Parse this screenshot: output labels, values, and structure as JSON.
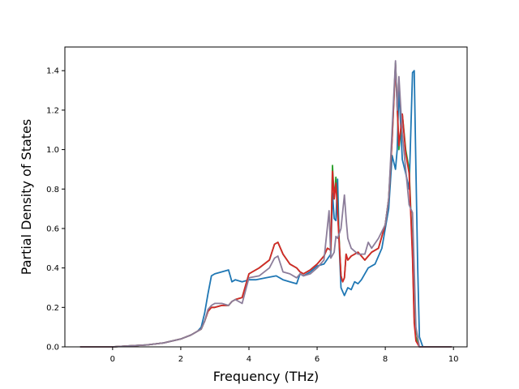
{
  "chart_data": {
    "type": "line",
    "title": "",
    "xlabel": "Frequency (THz)",
    "ylabel": "Partial Density of States",
    "xlim": [
      -1.4,
      10.4
    ],
    "ylim": [
      0.0,
      1.52
    ],
    "xticks": [
      0,
      2,
      4,
      6,
      8,
      10
    ],
    "xtick_labels": [
      "0",
      "2",
      "4",
      "6",
      "8",
      "10"
    ],
    "yticks": [
      0.0,
      0.2,
      0.4,
      0.6,
      0.8,
      1.0,
      1.2,
      1.4
    ],
    "ytick_labels": [
      "0.0",
      "0.2",
      "0.4",
      "0.6",
      "0.8",
      "1.0",
      "1.2",
      "1.4"
    ],
    "grid": false,
    "legend": "none",
    "series": [
      {
        "color": "#1f77b4",
        "x": [
          -0.95,
          0.0,
          0.5,
          1.0,
          1.5,
          2.0,
          2.3,
          2.5,
          2.6,
          2.7,
          2.8,
          2.9,
          3.0,
          3.2,
          3.4,
          3.5,
          3.6,
          3.8,
          4.0,
          4.2,
          4.5,
          4.8,
          5.0,
          5.2,
          5.4,
          5.5,
          5.6,
          5.8,
          6.0,
          6.2,
          6.4,
          6.45,
          6.5,
          6.55,
          6.6,
          6.65,
          6.7,
          6.8,
          6.9,
          7.0,
          7.1,
          7.2,
          7.3,
          7.5,
          7.7,
          7.9,
          8.0,
          8.1,
          8.2,
          8.3,
          8.35,
          8.4,
          8.5,
          8.6,
          8.7,
          8.8,
          8.85,
          8.9,
          8.95,
          9.0,
          9.1,
          9.5,
          9.95
        ],
        "y": [
          0.0,
          0.0,
          0.005,
          0.01,
          0.02,
          0.04,
          0.06,
          0.08,
          0.1,
          0.17,
          0.27,
          0.36,
          0.37,
          0.38,
          0.39,
          0.33,
          0.34,
          0.33,
          0.34,
          0.34,
          0.35,
          0.36,
          0.34,
          0.33,
          0.32,
          0.37,
          0.36,
          0.38,
          0.41,
          0.42,
          0.47,
          0.78,
          0.65,
          0.64,
          0.85,
          0.5,
          0.3,
          0.26,
          0.3,
          0.29,
          0.33,
          0.32,
          0.34,
          0.4,
          0.42,
          0.5,
          0.6,
          0.7,
          0.97,
          0.9,
          1.0,
          1.32,
          0.95,
          0.88,
          0.8,
          1.39,
          1.4,
          0.9,
          0.4,
          0.05,
          0.0,
          0.0,
          0.0
        ]
      },
      {
        "color": "#2ca02c",
        "x": [
          -0.95,
          0.0,
          0.5,
          1.0,
          1.5,
          2.0,
          2.3,
          2.5,
          2.6,
          2.7,
          2.8,
          2.9,
          3.0,
          3.2,
          3.4,
          3.5,
          3.6,
          3.8,
          4.0,
          4.3,
          4.6,
          4.75,
          4.85,
          5.0,
          5.2,
          5.4,
          5.5,
          5.6,
          5.8,
          6.0,
          6.2,
          6.3,
          6.4,
          6.45,
          6.5,
          6.55,
          6.6,
          6.7,
          6.75,
          6.8,
          6.85,
          6.9,
          7.0,
          7.1,
          7.2,
          7.4,
          7.6,
          7.8,
          8.0,
          8.1,
          8.2,
          8.3,
          8.35,
          8.4,
          8.5,
          8.6,
          8.7,
          8.8,
          8.85,
          8.9,
          9.0,
          9.5,
          9.95
        ],
        "y": [
          0.0,
          0.0,
          0.005,
          0.01,
          0.02,
          0.04,
          0.06,
          0.08,
          0.09,
          0.13,
          0.18,
          0.2,
          0.2,
          0.21,
          0.21,
          0.23,
          0.24,
          0.25,
          0.37,
          0.4,
          0.44,
          0.52,
          0.53,
          0.47,
          0.42,
          0.4,
          0.38,
          0.37,
          0.39,
          0.42,
          0.46,
          0.5,
          0.49,
          0.92,
          0.75,
          0.86,
          0.7,
          0.36,
          0.33,
          0.35,
          0.47,
          0.44,
          0.46,
          0.47,
          0.48,
          0.44,
          0.48,
          0.5,
          0.62,
          0.75,
          1.05,
          1.44,
          1.22,
          1.0,
          1.18,
          1.0,
          0.9,
          0.48,
          0.15,
          0.05,
          0.0,
          0.0,
          0.0
        ]
      },
      {
        "color": "#d62728",
        "x": [
          -0.95,
          0.0,
          0.5,
          1.0,
          1.5,
          2.0,
          2.3,
          2.5,
          2.6,
          2.7,
          2.8,
          2.9,
          3.0,
          3.2,
          3.4,
          3.5,
          3.6,
          3.8,
          4.0,
          4.3,
          4.6,
          4.75,
          4.85,
          5.0,
          5.2,
          5.4,
          5.5,
          5.6,
          5.8,
          6.0,
          6.2,
          6.3,
          6.4,
          6.45,
          6.5,
          6.55,
          6.6,
          6.7,
          6.75,
          6.8,
          6.85,
          6.9,
          7.0,
          7.1,
          7.2,
          7.4,
          7.6,
          7.8,
          8.0,
          8.1,
          8.2,
          8.3,
          8.35,
          8.4,
          8.5,
          8.6,
          8.7,
          8.8,
          8.85,
          8.9,
          9.0,
          9.5,
          9.95
        ],
        "y": [
          0.0,
          0.0,
          0.005,
          0.01,
          0.02,
          0.04,
          0.06,
          0.08,
          0.09,
          0.13,
          0.18,
          0.2,
          0.2,
          0.21,
          0.21,
          0.23,
          0.24,
          0.25,
          0.37,
          0.4,
          0.44,
          0.52,
          0.53,
          0.47,
          0.42,
          0.4,
          0.38,
          0.37,
          0.39,
          0.42,
          0.46,
          0.5,
          0.49,
          0.89,
          0.75,
          0.83,
          0.68,
          0.36,
          0.33,
          0.35,
          0.47,
          0.44,
          0.46,
          0.47,
          0.48,
          0.44,
          0.48,
          0.5,
          0.62,
          0.75,
          1.05,
          1.43,
          1.22,
          1.02,
          1.18,
          0.98,
          0.88,
          0.45,
          0.12,
          0.03,
          0.0,
          0.0,
          0.0
        ]
      },
      {
        "color": "#8c7d9a",
        "x": [
          -0.95,
          0.0,
          0.5,
          1.0,
          1.5,
          2.0,
          2.3,
          2.5,
          2.6,
          2.7,
          2.8,
          2.9,
          3.0,
          3.2,
          3.4,
          3.5,
          3.6,
          3.8,
          4.0,
          4.3,
          4.6,
          4.75,
          4.85,
          5.0,
          5.2,
          5.4,
          5.5,
          5.6,
          5.8,
          6.0,
          6.2,
          6.35,
          6.4,
          6.5,
          6.55,
          6.6,
          6.7,
          6.8,
          6.85,
          6.9,
          7.0,
          7.2,
          7.4,
          7.5,
          7.6,
          7.8,
          8.0,
          8.1,
          8.2,
          8.3,
          8.35,
          8.4,
          8.5,
          8.6,
          8.7,
          8.8,
          8.85,
          8.9,
          9.0,
          9.5,
          9.95
        ],
        "y": [
          0.0,
          0.0,
          0.005,
          0.01,
          0.02,
          0.04,
          0.06,
          0.08,
          0.09,
          0.13,
          0.19,
          0.21,
          0.22,
          0.22,
          0.21,
          0.23,
          0.24,
          0.22,
          0.35,
          0.36,
          0.4,
          0.45,
          0.46,
          0.38,
          0.37,
          0.35,
          0.37,
          0.36,
          0.37,
          0.4,
          0.44,
          0.69,
          0.45,
          0.48,
          0.56,
          0.55,
          0.6,
          0.77,
          0.65,
          0.55,
          0.5,
          0.47,
          0.47,
          0.53,
          0.5,
          0.55,
          0.62,
          0.75,
          1.1,
          1.45,
          1.2,
          1.37,
          1.08,
          0.9,
          0.72,
          0.68,
          0.4,
          0.1,
          0.0,
          0.0,
          0.0
        ]
      }
    ]
  }
}
